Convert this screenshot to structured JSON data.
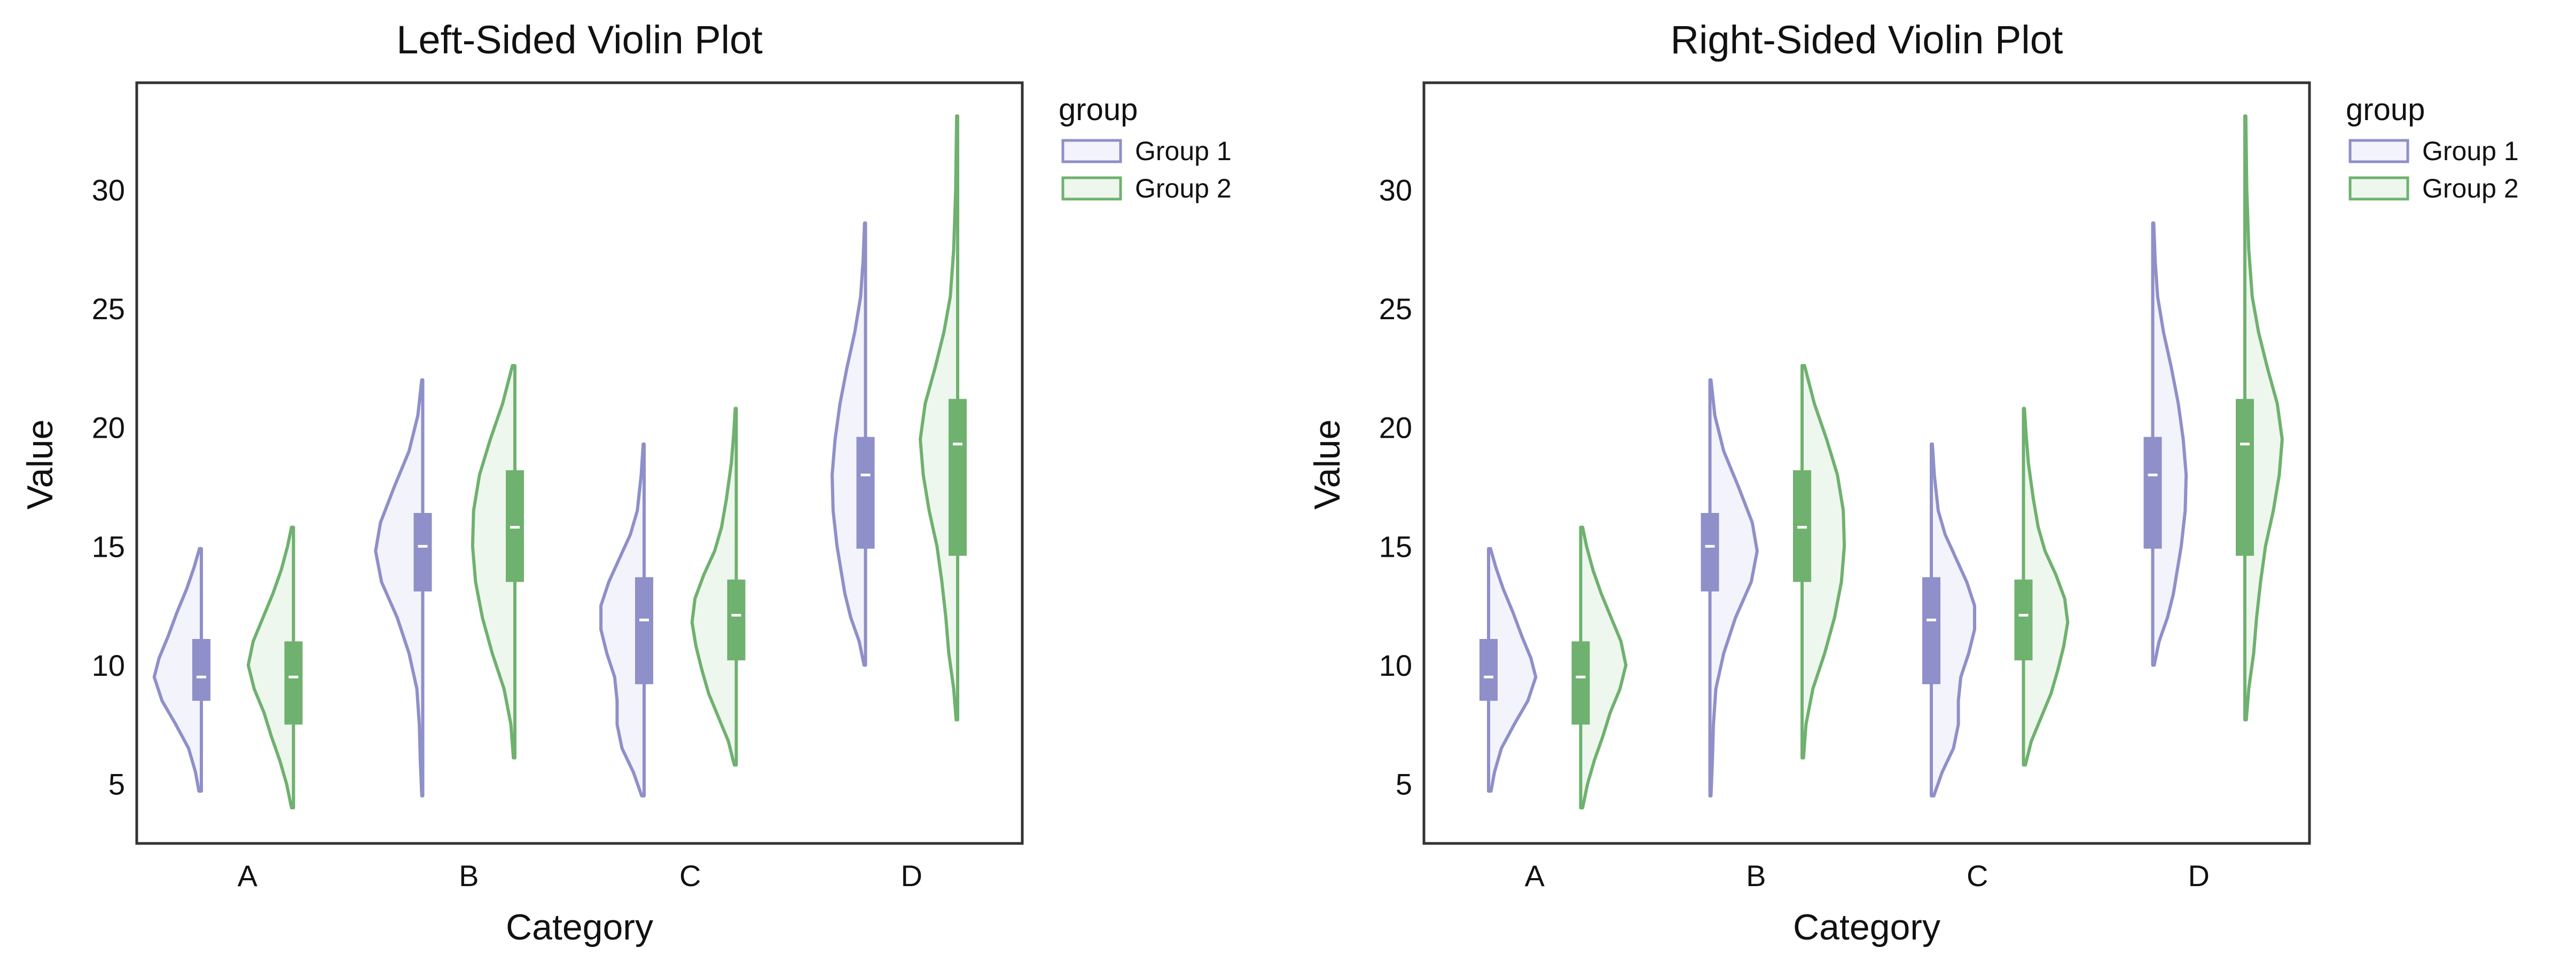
{
  "colors": {
    "group1_line": "#8f8fc9",
    "group1_fill": "#f3f3fb",
    "group1_box": "#8f8fc9",
    "group2_line": "#6fb16f",
    "group2_fill": "#eef7ee",
    "group2_box": "#6fb16f",
    "median": "#ffffff",
    "frame": "#333333"
  },
  "chart_data": [
    {
      "type": "violin",
      "variant": "left-sided",
      "title": "Left-Sided Violin Plot",
      "xlabel": "Category",
      "ylabel": "Value",
      "categories": [
        "A",
        "B",
        "C",
        "D"
      ],
      "yticks": [
        5,
        10,
        15,
        20,
        25,
        30
      ],
      "ylim": [
        2.5,
        34.5
      ],
      "grid": false,
      "legend": {
        "title": "group",
        "placement": "outside-right",
        "entries": [
          "Group 1",
          "Group 2"
        ]
      },
      "series": [
        {
          "name": "Group 1",
          "stats": [
            {
              "min": 4.7,
              "q1": 8.5,
              "median": 9.5,
              "q3": 11.1,
              "max": 14.9
            },
            {
              "min": 4.5,
              "q1": 13.1,
              "median": 15.0,
              "q3": 16.4,
              "max": 22.0
            },
            {
              "min": 4.5,
              "q1": 9.2,
              "median": 11.9,
              "q3": 13.7,
              "max": 19.3
            },
            {
              "min": 10.0,
              "q1": 14.9,
              "median": 18.0,
              "q3": 19.6,
              "max": 28.6
            }
          ],
          "density": [
            [
              [
                4.7,
                0.05
              ],
              [
                5.5,
                0.12
              ],
              [
                6.5,
                0.26
              ],
              [
                7.5,
                0.52
              ],
              [
                8.5,
                0.8
              ],
              [
                9.5,
                0.96
              ],
              [
                10.3,
                0.86
              ],
              [
                11.2,
                0.68
              ],
              [
                12.2,
                0.5
              ],
              [
                13.2,
                0.3
              ],
              [
                14.1,
                0.15
              ],
              [
                14.9,
                0.04
              ]
            ],
            [
              [
                4.5,
                0.02
              ],
              [
                6.0,
                0.05
              ],
              [
                7.5,
                0.07
              ],
              [
                9.0,
                0.12
              ],
              [
                10.5,
                0.28
              ],
              [
                12.0,
                0.52
              ],
              [
                13.5,
                0.84
              ],
              [
                14.8,
                0.96
              ],
              [
                16.0,
                0.86
              ],
              [
                17.5,
                0.58
              ],
              [
                19.0,
                0.28
              ],
              [
                20.5,
                0.1
              ],
              [
                22.0,
                0.02
              ]
            ],
            [
              [
                4.5,
                0.05
              ],
              [
                5.5,
                0.22
              ],
              [
                6.5,
                0.45
              ],
              [
                7.5,
                0.55
              ],
              [
                8.5,
                0.55
              ],
              [
                9.5,
                0.6
              ],
              [
                10.5,
                0.76
              ],
              [
                11.5,
                0.88
              ],
              [
                12.5,
                0.88
              ],
              [
                13.5,
                0.72
              ],
              [
                14.5,
                0.5
              ],
              [
                15.5,
                0.28
              ],
              [
                16.5,
                0.14
              ],
              [
                18.0,
                0.06
              ],
              [
                19.3,
                0.02
              ]
            ],
            [
              [
                10.0,
                0.03
              ],
              [
                11.0,
                0.13
              ],
              [
                12.0,
                0.3
              ],
              [
                13.0,
                0.42
              ],
              [
                14.0,
                0.5
              ],
              [
                15.0,
                0.58
              ],
              [
                16.5,
                0.66
              ],
              [
                18.0,
                0.68
              ],
              [
                19.5,
                0.62
              ],
              [
                21.0,
                0.52
              ],
              [
                22.5,
                0.38
              ],
              [
                24.0,
                0.22
              ],
              [
                25.5,
                0.1
              ],
              [
                27.0,
                0.05
              ],
              [
                28.6,
                0.02
              ]
            ]
          ]
        },
        {
          "name": "Group 2",
          "stats": [
            {
              "min": 4.0,
              "q1": 7.5,
              "median": 9.5,
              "q3": 11.0,
              "max": 15.8
            },
            {
              "min": 6.1,
              "q1": 13.5,
              "median": 15.8,
              "q3": 18.2,
              "max": 22.6
            },
            {
              "min": 5.8,
              "q1": 10.2,
              "median": 12.1,
              "q3": 13.6,
              "max": 20.8
            },
            {
              "min": 7.7,
              "q1": 14.6,
              "median": 19.3,
              "q3": 21.2,
              "max": 33.1
            }
          ],
          "density": [
            [
              [
                4.0,
                0.04
              ],
              [
                5.0,
                0.14
              ],
              [
                6.0,
                0.28
              ],
              [
                7.0,
                0.45
              ],
              [
                8.0,
                0.6
              ],
              [
                9.0,
                0.8
              ],
              [
                10.0,
                0.92
              ],
              [
                11.0,
                0.82
              ],
              [
                12.0,
                0.62
              ],
              [
                13.0,
                0.42
              ],
              [
                14.0,
                0.25
              ],
              [
                15.0,
                0.12
              ],
              [
                15.8,
                0.04
              ]
            ],
            [
              [
                6.1,
                0.03
              ],
              [
                7.5,
                0.08
              ],
              [
                9.0,
                0.22
              ],
              [
                10.5,
                0.46
              ],
              [
                12.0,
                0.66
              ],
              [
                13.5,
                0.8
              ],
              [
                15.0,
                0.86
              ],
              [
                16.5,
                0.84
              ],
              [
                18.0,
                0.72
              ],
              [
                19.5,
                0.5
              ],
              [
                21.0,
                0.25
              ],
              [
                22.6,
                0.05
              ]
            ],
            [
              [
                5.8,
                0.04
              ],
              [
                6.8,
                0.16
              ],
              [
                7.8,
                0.36
              ],
              [
                8.8,
                0.56
              ],
              [
                9.8,
                0.7
              ],
              [
                10.8,
                0.82
              ],
              [
                11.8,
                0.9
              ],
              [
                12.8,
                0.84
              ],
              [
                13.8,
                0.66
              ],
              [
                14.8,
                0.44
              ],
              [
                15.8,
                0.3
              ],
              [
                17.0,
                0.2
              ],
              [
                18.5,
                0.1
              ],
              [
                19.8,
                0.05
              ],
              [
                20.8,
                0.02
              ]
            ],
            [
              [
                7.7,
                0.03
              ],
              [
                9.0,
                0.08
              ],
              [
                10.5,
                0.18
              ],
              [
                12.0,
                0.24
              ],
              [
                13.5,
                0.32
              ],
              [
                15.0,
                0.42
              ],
              [
                16.5,
                0.58
              ],
              [
                18.0,
                0.7
              ],
              [
                19.5,
                0.76
              ],
              [
                21.0,
                0.66
              ],
              [
                22.5,
                0.46
              ],
              [
                24.0,
                0.28
              ],
              [
                25.5,
                0.15
              ],
              [
                27.5,
                0.08
              ],
              [
                30.0,
                0.04
              ],
              [
                33.1,
                0.02
              ]
            ]
          ]
        }
      ]
    },
    {
      "type": "violin",
      "variant": "right-sided",
      "title": "Right-Sided Violin Plot",
      "xlabel": "Category",
      "ylabel": "Value",
      "categories": [
        "A",
        "B",
        "C",
        "D"
      ],
      "yticks": [
        5,
        10,
        15,
        20,
        25,
        30
      ],
      "ylim": [
        2.5,
        34.5
      ],
      "grid": false,
      "legend": {
        "title": "group",
        "placement": "outside-right",
        "entries": [
          "Group 1",
          "Group 2"
        ]
      },
      "series_same_as_left": true
    }
  ]
}
